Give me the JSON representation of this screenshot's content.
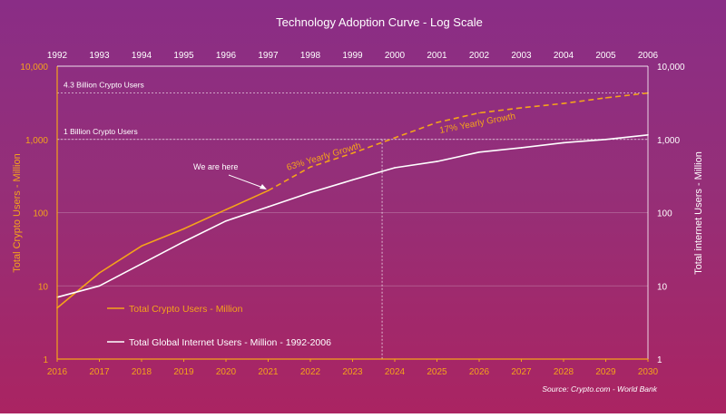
{
  "chart_data": {
    "type": "line",
    "title": "Technology Adoption Curve - Log Scale",
    "source": "Source: Crypto.com - World Bank",
    "y_scale": "log",
    "ylim": [
      1,
      10000
    ],
    "y_ticks": [
      "1",
      "10",
      "100",
      "1,000",
      "10,000"
    ],
    "y_tick_values": [
      1,
      10,
      100,
      1000,
      10000
    ],
    "ylabel_left": "Total Crypto Users - Million",
    "ylabel_right": "Total internet Users - Million",
    "x_bottom": [
      "2016",
      "2017",
      "2018",
      "2019",
      "2020",
      "2021",
      "2022",
      "2023",
      "2024",
      "2025",
      "2026",
      "2027",
      "2028",
      "2029",
      "2030"
    ],
    "x_top": [
      "1992",
      "1993",
      "1994",
      "1995",
      "1996",
      "1997",
      "1998",
      "1999",
      "2000",
      "2001",
      "2002",
      "2003",
      "2004",
      "2005",
      "2006"
    ],
    "series": [
      {
        "name": "Total Crypto Users - Million",
        "color": "#f5a31a",
        "axis": "left",
        "style": "solid",
        "x": [
          2016,
          2017,
          2018,
          2019,
          2020,
          2021
        ],
        "values": [
          5,
          15,
          35,
          60,
          110,
          200
        ]
      },
      {
        "name": "",
        "color": "#f5a31a",
        "axis": "left",
        "style": "dashed",
        "x": [
          2021,
          2022,
          2023,
          2024,
          2025,
          2026,
          2027,
          2028,
          2029,
          2030
        ],
        "values": [
          200,
          420,
          650,
          1050,
          1700,
          2300,
          2700,
          3100,
          3700,
          4300
        ]
      },
      {
        "name": "Total Global Internet Users - Million - 1992-2006",
        "color": "#ffffff",
        "axis": "right",
        "style": "solid",
        "x": [
          1992,
          1993,
          1994,
          1995,
          1996,
          1997,
          1998,
          1999,
          2000,
          2001,
          2002,
          2003,
          2004,
          2005,
          2006
        ],
        "values": [
          7,
          10,
          20,
          40,
          77,
          120,
          188,
          280,
          410,
          500,
          670,
          770,
          900,
          1000,
          1150
        ]
      }
    ],
    "reference_lines": [
      {
        "label": "4.3 Billion Crypto Users",
        "value": 4300
      },
      {
        "label": "1 Billion Crypto Users",
        "value": 1000
      }
    ],
    "vertical_line_x": 2023.7,
    "annotations": {
      "we_are_here": "We are here",
      "growth_early": "63% Yearly Growth",
      "growth_late": "17% Yearly Growth"
    },
    "grid": true,
    "legend_position": "bottom-left"
  }
}
